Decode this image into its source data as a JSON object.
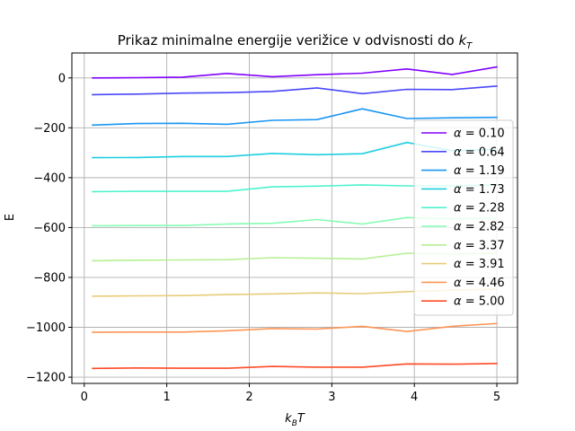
{
  "chart_data": {
    "type": "line",
    "title": "Prikaz minimalne energije verižice v odvisnosti do k_BT",
    "title_main": "Prikaz minimalne energije verižice v odvisnosti do ",
    "title_math_base": "k",
    "title_math_sub": "T",
    "xlabel": "k_BT",
    "xlabel_base": "k",
    "xlabel_sub": "B",
    "xlabel_tail": "T",
    "ylabel": "E",
    "xlim": [
      -0.15,
      5.25
    ],
    "ylim": [
      -1225,
      100
    ],
    "xticks": [
      0,
      1,
      2,
      3,
      4,
      5
    ],
    "yticks": [
      0,
      -200,
      -400,
      -600,
      -800,
      -1000,
      -1200
    ],
    "xtick_labels": [
      "0",
      "1",
      "2",
      "3",
      "4",
      "5"
    ],
    "ytick_labels": [
      "0",
      "−200",
      "−400",
      "−600",
      "−800",
      "−1000",
      "−1200"
    ],
    "grid": true,
    "legend_position": "center-right",
    "x": [
      0.1,
      0.64,
      1.19,
      1.73,
      2.28,
      2.82,
      3.37,
      3.91,
      4.46,
      5.0
    ],
    "series": [
      {
        "name": "α = 0.10",
        "alpha": "0.10",
        "color": "#8000ff",
        "values": [
          0,
          1,
          3,
          18,
          5,
          13,
          19,
          36,
          14,
          44
        ]
      },
      {
        "name": "α = 0.64",
        "alpha": "0.64",
        "color": "#4a46f9",
        "values": [
          -67,
          -65,
          -61,
          -59,
          -54,
          -40,
          -63,
          -46,
          -47,
          -33
        ]
      },
      {
        "name": "α = 1.19",
        "alpha": "1.19",
        "color": "#1996f3",
        "values": [
          -189,
          -183,
          -182,
          -186,
          -170,
          -167,
          -124,
          -163,
          -160,
          -158
        ]
      },
      {
        "name": "α = 1.73",
        "alpha": "1.73",
        "color": "#1dcfe0",
        "values": [
          -320,
          -319,
          -315,
          -315,
          -303,
          -308,
          -304,
          -259,
          -292,
          -287
        ]
      },
      {
        "name": "α = 2.28",
        "alpha": "2.28",
        "color": "#4df3ce",
        "values": [
          -456,
          -455,
          -455,
          -455,
          -437,
          -434,
          -429,
          -433,
          -433,
          -430
        ]
      },
      {
        "name": "α = 2.82",
        "alpha": "2.82",
        "color": "#84fcb2",
        "values": [
          -593,
          -592,
          -592,
          -586,
          -583,
          -568,
          -586,
          -560,
          -565,
          -562
        ]
      },
      {
        "name": "α = 3.37",
        "alpha": "3.37",
        "color": "#b6f094",
        "values": [
          -733,
          -731,
          -730,
          -729,
          -721,
          -723,
          -726,
          -703,
          -706,
          -702
        ]
      },
      {
        "name": "α = 3.91",
        "alpha": "3.91",
        "color": "#e8cc78",
        "values": [
          -875,
          -874,
          -873,
          -869,
          -866,
          -862,
          -865,
          -857,
          -851,
          -847
        ]
      },
      {
        "name": "α = 4.46",
        "alpha": "4.46",
        "color": "#ff9555",
        "values": [
          -1020,
          -1019,
          -1019,
          -1014,
          -1005,
          -1007,
          -996,
          -1017,
          -996,
          -985
        ]
      },
      {
        "name": "α = 5.00",
        "alpha": "5.00",
        "color": "#ff4a27",
        "values": [
          -1165,
          -1163,
          -1164,
          -1164,
          -1157,
          -1160,
          -1160,
          -1147,
          -1148,
          -1145
        ]
      }
    ]
  }
}
